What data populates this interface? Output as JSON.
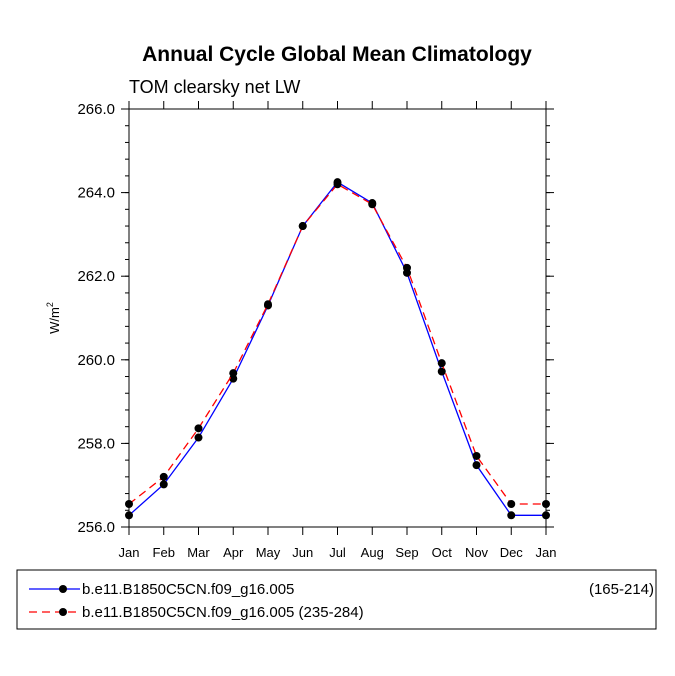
{
  "chart_data": {
    "type": "line",
    "title": "Annual Cycle Global Mean Climatology",
    "subtitle": "TOM clearsky net LW",
    "xlabel": "",
    "ylabel": "W/m",
    "ylabel_superscript": "2",
    "ylim": [
      256.0,
      266.0
    ],
    "yticks": [
      256.0,
      258.0,
      260.0,
      262.0,
      264.0,
      266.0
    ],
    "ytick_labels": [
      "256.0",
      "258.0",
      "260.0",
      "262.0",
      "264.0",
      "266.0"
    ],
    "categories": [
      "Jan",
      "Feb",
      "Mar",
      "Apr",
      "May",
      "Jun",
      "Jul",
      "Aug",
      "Sep",
      "Oct",
      "Nov",
      "Dec",
      "Jan"
    ],
    "series": [
      {
        "name": "b.e11.B1850C5CN.f09_g16.005",
        "period": "(165-214)",
        "color": "#0000ff",
        "dash": "solid",
        "values": [
          256.28,
          257.02,
          258.14,
          259.55,
          261.3,
          263.2,
          264.25,
          263.75,
          262.08,
          259.72,
          257.48,
          256.28,
          256.28
        ]
      },
      {
        "name": "b.e11.B1850C5CN.f09_g16.005 (235-284)",
        "period": "",
        "color": "#ff0000",
        "dash": "dashed",
        "values": [
          256.55,
          257.2,
          258.36,
          259.68,
          261.33,
          263.2,
          264.2,
          263.72,
          262.2,
          259.92,
          257.7,
          256.55,
          256.55
        ]
      }
    ],
    "legend": "bottom"
  }
}
